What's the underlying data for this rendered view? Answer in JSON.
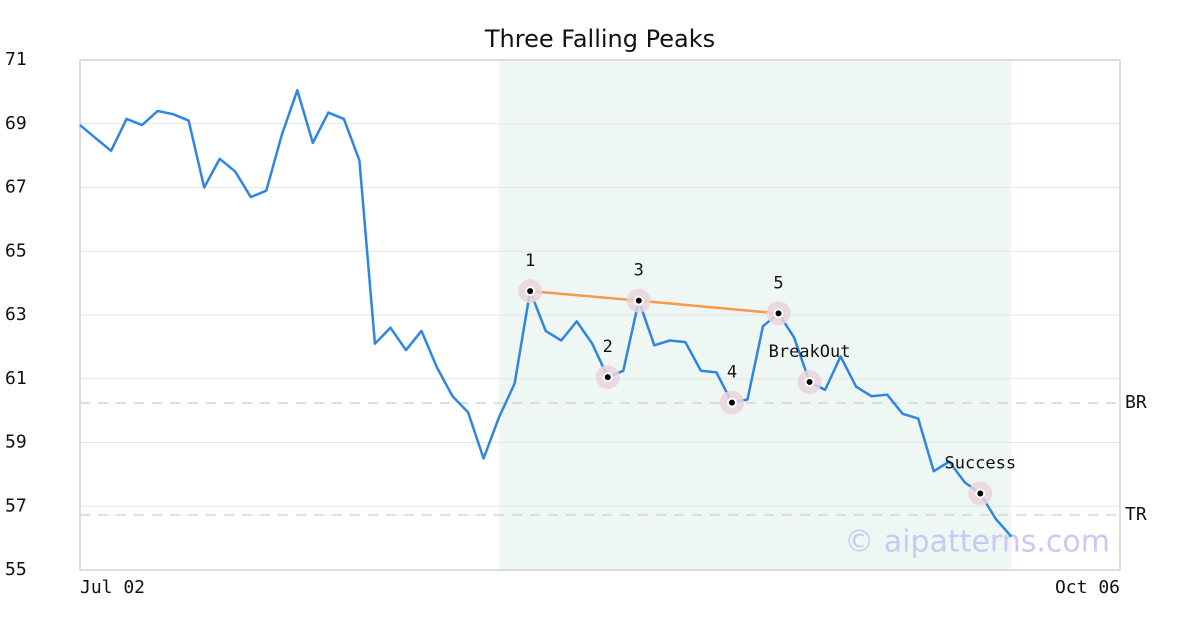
{
  "chart_data": {
    "type": "line",
    "title": "Three Falling Peaks",
    "x": [
      0,
      1,
      2,
      3,
      4,
      5,
      6,
      7,
      8,
      9,
      10,
      11,
      12,
      13,
      14,
      15,
      16,
      17,
      18,
      19,
      20,
      21,
      22,
      23,
      24,
      25,
      26,
      27,
      28,
      29,
      30,
      31,
      32,
      33,
      34,
      35,
      36,
      37,
      38,
      39,
      40,
      41,
      42,
      43,
      44,
      45,
      46,
      47,
      48,
      49,
      50,
      51,
      52,
      53,
      54,
      55,
      56,
      57,
      58,
      59,
      60
    ],
    "series": [
      {
        "color": "#2f86e0",
        "values": [
          68.96,
          68.55,
          68.15,
          69.15,
          68.96,
          69.4,
          69.3,
          69.1,
          67.0,
          67.9,
          67.5,
          66.7,
          66.9,
          68.65,
          70.05,
          68.4,
          69.35,
          69.15,
          67.85,
          62.1,
          62.6,
          61.9,
          62.5,
          61.35,
          60.45,
          59.95,
          58.5,
          59.8,
          60.85,
          63.75,
          62.5,
          62.2,
          62.8,
          62.1,
          61.05,
          61.25,
          63.45,
          62.05,
          62.2,
          62.15,
          61.25,
          61.2,
          60.25,
          60.35,
          62.65,
          63.05,
          62.3,
          60.9,
          60.65,
          61.7,
          60.75,
          60.45,
          60.5,
          59.9,
          59.75,
          58.1,
          58.4,
          57.75,
          57.4,
          56.6,
          56.05
        ]
      }
    ],
    "xlim": [
      0,
      67
    ],
    "xticks": [
      {
        "value": 0,
        "label": "Jul 02"
      },
      {
        "value": 67,
        "label": "Oct 06"
      }
    ],
    "ylim": [
      55,
      71
    ],
    "yticks": [
      55,
      57,
      59,
      61,
      63,
      65,
      67,
      69,
      71
    ],
    "grid": true,
    "highlight": {
      "x": [
        27,
        60
      ],
      "color": "#eef7f3"
    },
    "peak_line": {
      "color": "#f79a45",
      "x": [
        29,
        36,
        45
      ],
      "y": [
        63.75,
        63.45,
        63.05
      ]
    },
    "markers": [
      {
        "label": "1",
        "x": 29,
        "y": 63.75
      },
      {
        "label": "2",
        "x": 34,
        "y": 61.05
      },
      {
        "label": "3",
        "x": 36,
        "y": 63.45
      },
      {
        "label": "4",
        "x": 42,
        "y": 60.25
      },
      {
        "label": "5",
        "x": 45,
        "y": 63.05
      },
      {
        "label": "BreakOut",
        "x": 47,
        "y": 60.9
      },
      {
        "label": "Success",
        "x": 58,
        "y": 57.4
      }
    ],
    "levels": [
      {
        "label": "BR",
        "value": 60.24
      },
      {
        "label": "TR",
        "value": 56.73
      }
    ],
    "watermark": "© aipatterns.com"
  }
}
